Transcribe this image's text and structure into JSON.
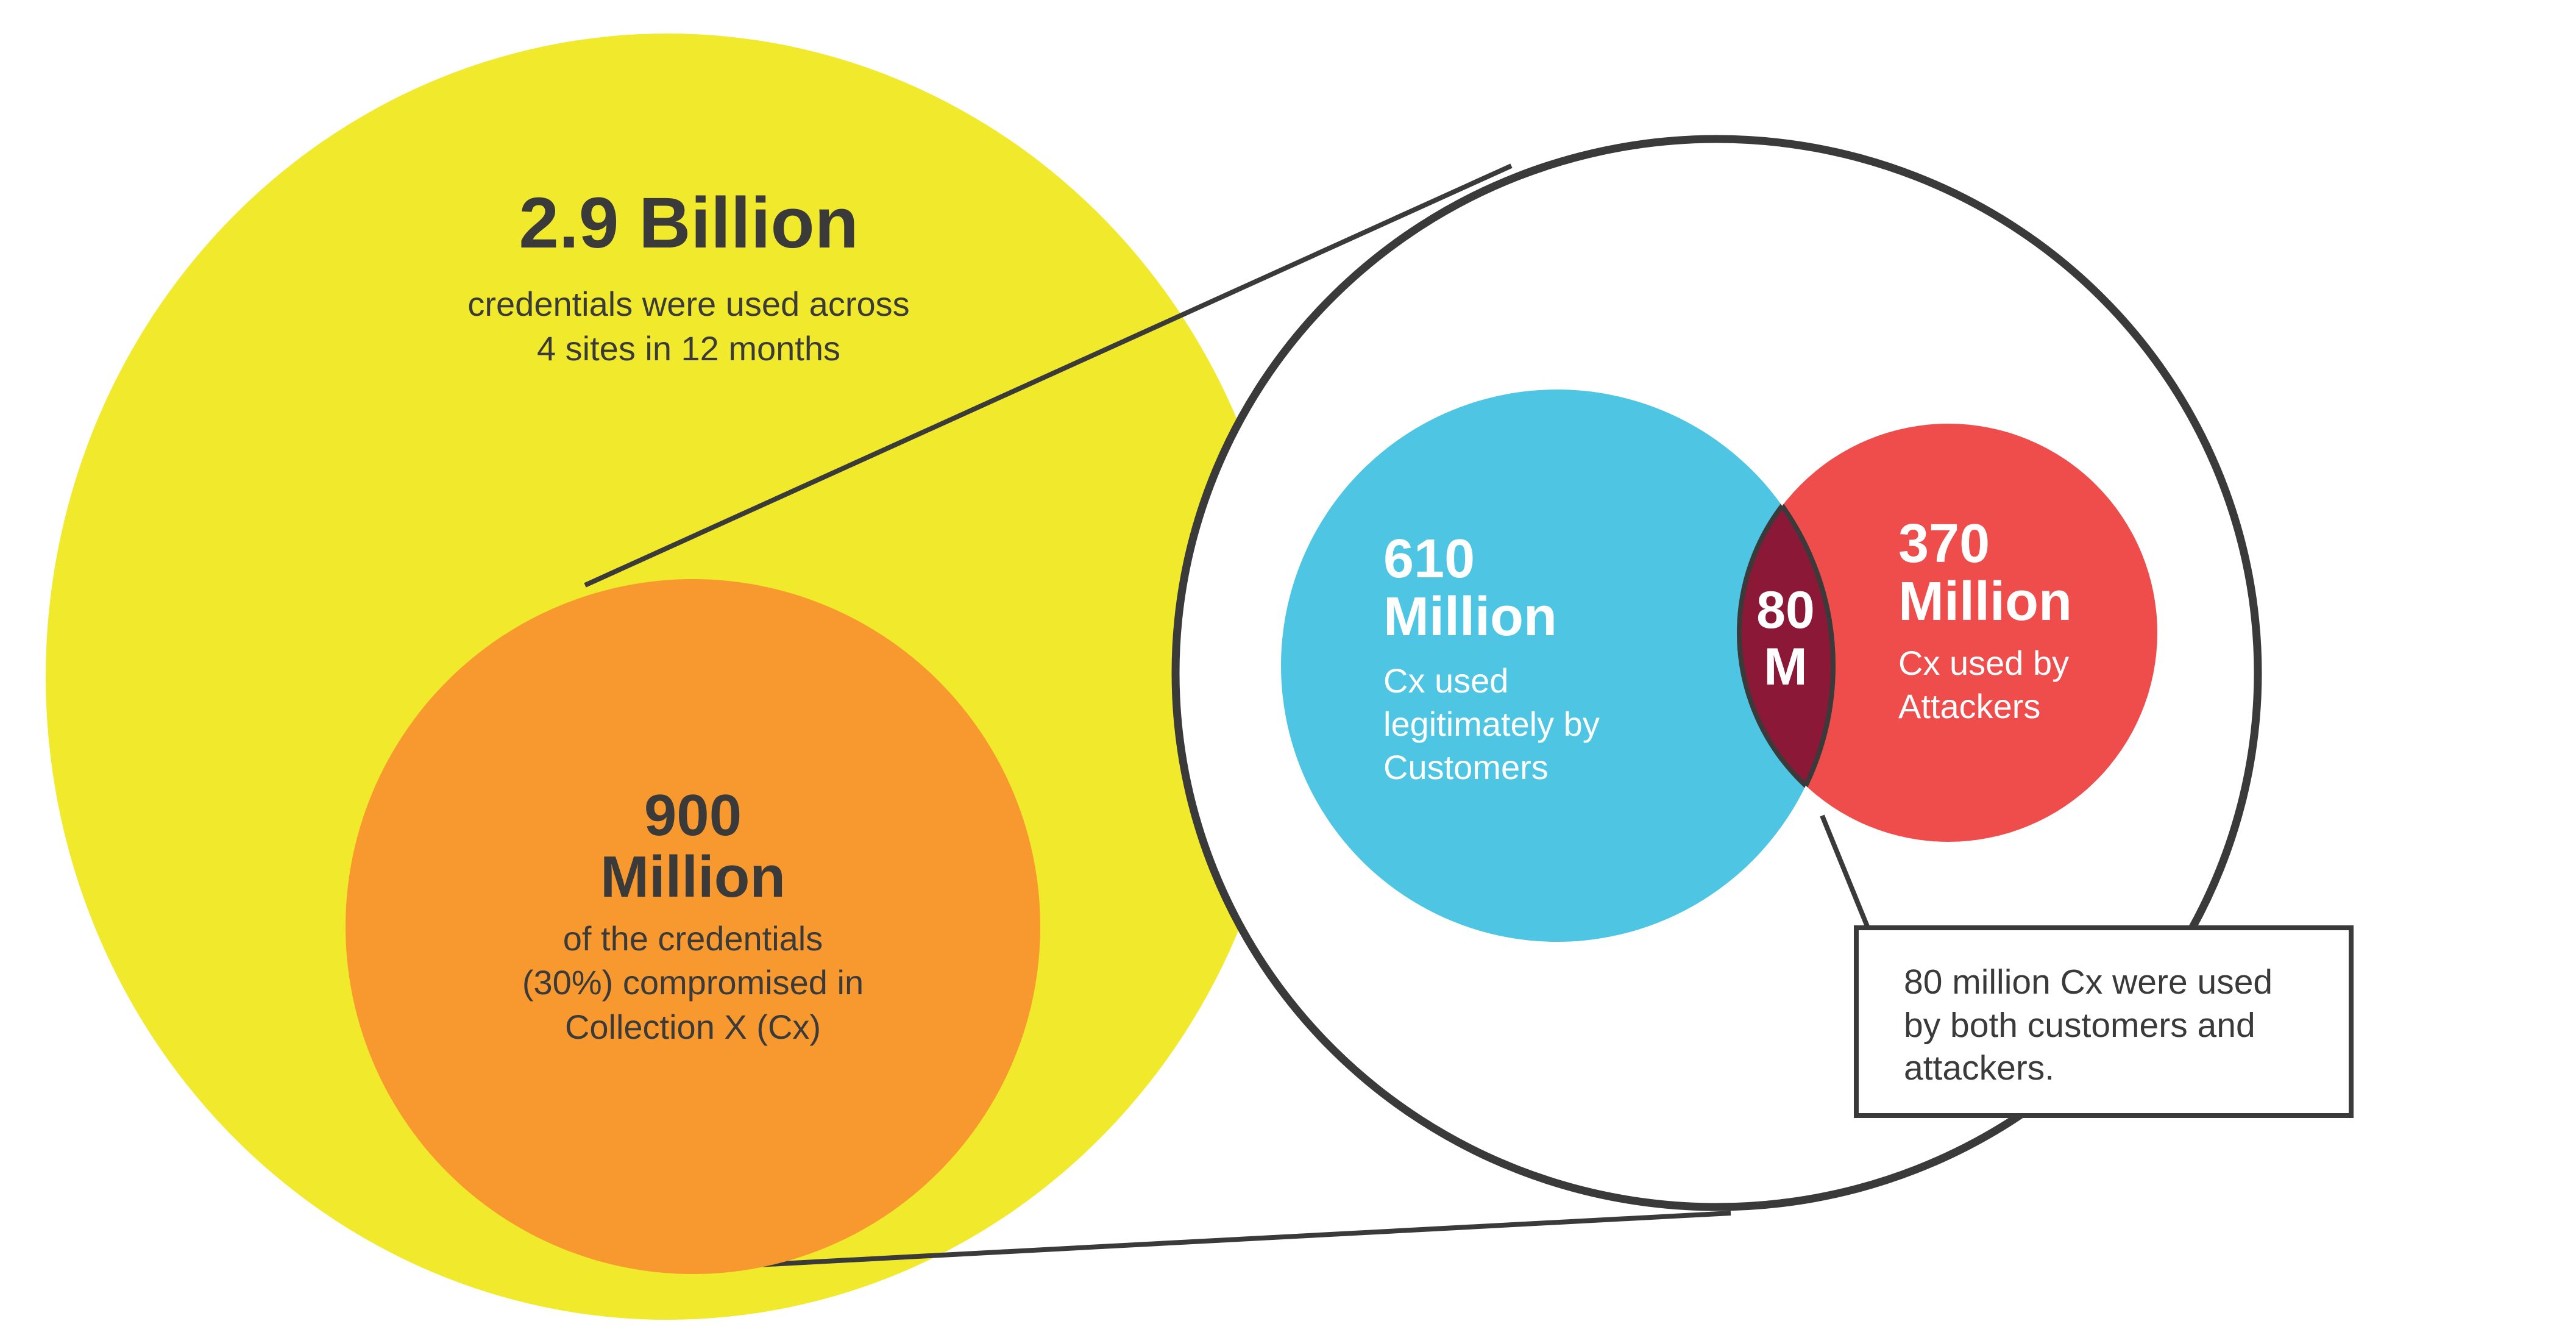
{
  "diagram": {
    "colors": {
      "outer": "#F1E92C",
      "subset": "#F7992E",
      "customers": "#4DC5E3",
      "attackers": "#EF4C4C",
      "overlap": "#8C1838",
      "outline": "#3A3A3A",
      "text": "#3A3A3A"
    },
    "outer": {
      "value": "2.9 Billion",
      "caption_lines": [
        "credentials were used across",
        "4 sites in 12 months"
      ]
    },
    "subset": {
      "value_lines": [
        "900",
        "Million"
      ],
      "caption_lines": [
        "of the credentials",
        "(30%) compromised in",
        "Collection X (Cx)"
      ]
    },
    "customers": {
      "value_lines": [
        "610",
        "Million"
      ],
      "caption_lines": [
        "Cx used",
        "legitimately by",
        "Customers"
      ]
    },
    "attackers": {
      "value_lines": [
        "370",
        "Million"
      ],
      "caption_lines": [
        "Cx used by",
        "Attackers"
      ]
    },
    "overlap": {
      "value_lines": [
        "80",
        "M"
      ]
    },
    "callout": {
      "lines": [
        "80 million Cx were used",
        "by both customers and",
        "attackers."
      ]
    }
  }
}
